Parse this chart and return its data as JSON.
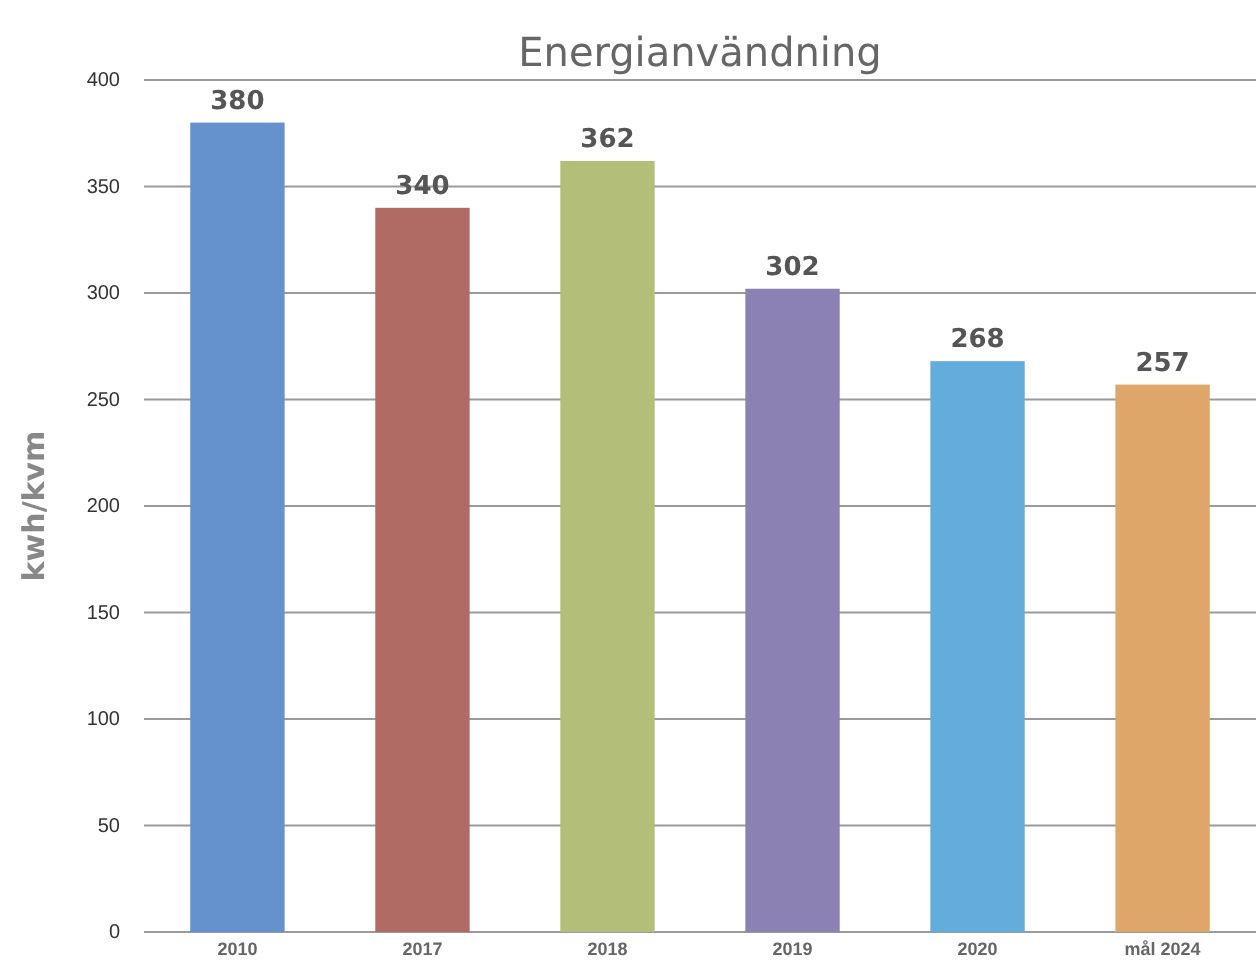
{
  "chart_data": {
    "type": "bar",
    "title": "Energianvändning",
    "ylabel": "kwh/kvm",
    "categories": [
      "2010",
      "2017",
      "2018",
      "2019",
      "2020",
      "mål 2024"
    ],
    "values": [
      380,
      340,
      362,
      302,
      268,
      257
    ],
    "colors": [
      "#6591cc",
      "#b06b65",
      "#b3bf78",
      "#8b82b3",
      "#62addb",
      "#dea669"
    ],
    "ylim": [
      0,
      400
    ],
    "yticks": [
      0,
      50,
      100,
      150,
      200,
      250,
      300,
      350,
      400
    ],
    "grid": "y",
    "data_labels": true,
    "legend": false
  }
}
